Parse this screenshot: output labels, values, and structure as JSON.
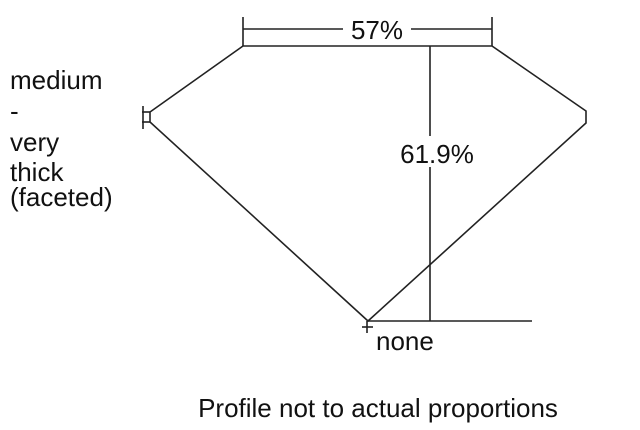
{
  "diagram": {
    "table_percentage": "57%",
    "total_depth_percentage": "61.9%",
    "culet_label": "none",
    "girdle_label_lines": [
      "medium",
      "-",
      "very",
      "thick",
      "(faceted)"
    ],
    "footnote": "Profile not to actual proportions"
  }
}
